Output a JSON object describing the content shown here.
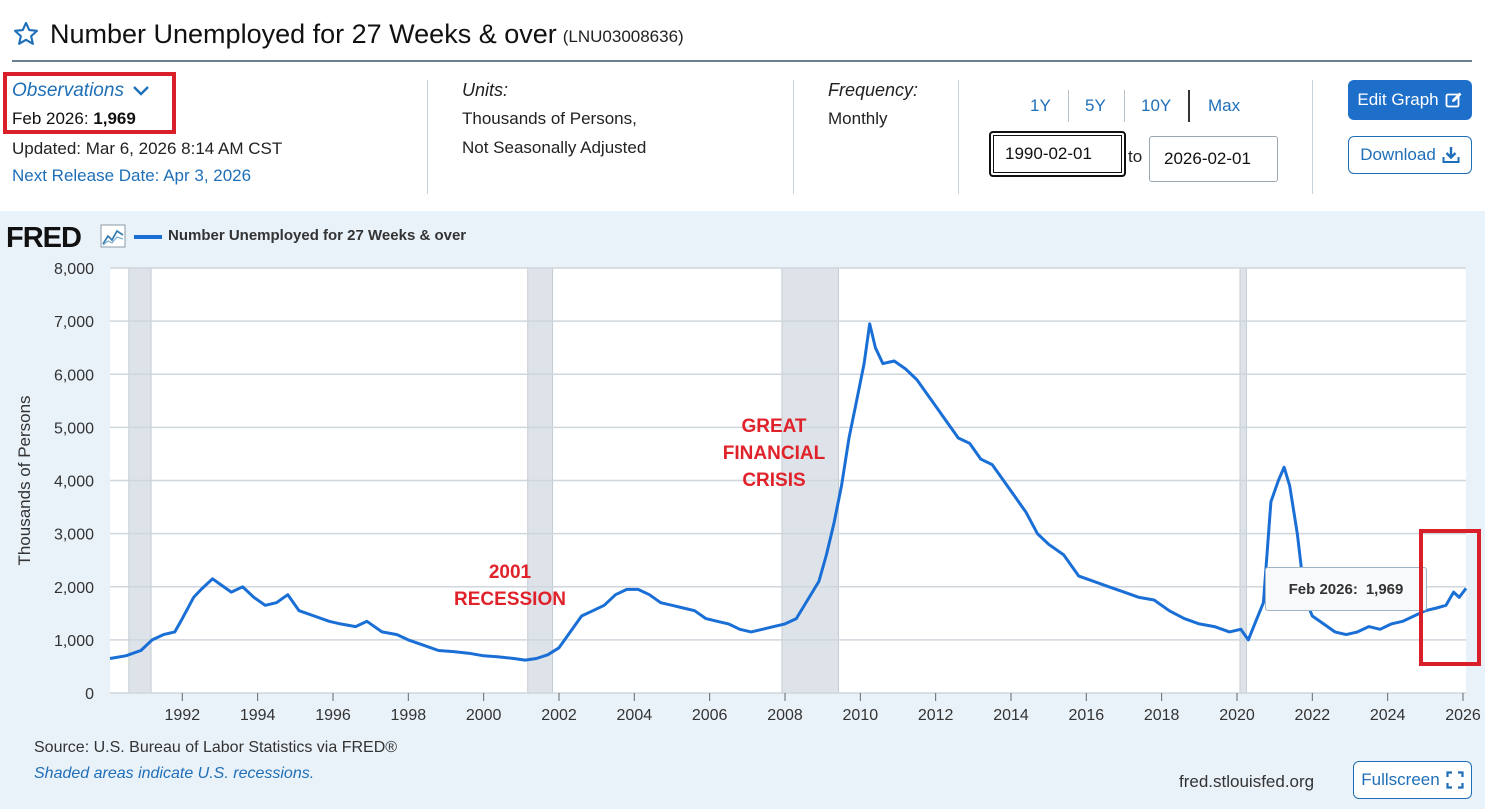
{
  "header": {
    "title": "Number Unemployed for 27 Weeks & over",
    "series_id": "(LNU03008636)"
  },
  "observations": {
    "label": "Observations",
    "value_date": "Feb 2026:",
    "value": "1,969",
    "updated": "Updated: Mar 6, 2026 8:14 AM CST",
    "next_release": "Next Release Date: Apr 3, 2026"
  },
  "units": {
    "label": "Units:",
    "line1": "Thousands of Persons,",
    "line2": "Not Seasonally Adjusted"
  },
  "frequency": {
    "label": "Frequency:",
    "value": "Monthly"
  },
  "range": {
    "buttons": [
      "1Y",
      "5Y",
      "10Y",
      "Max"
    ],
    "start": "1990-02-01",
    "to": "to",
    "end": "2026-02-01"
  },
  "actions": {
    "edit": "Edit Graph",
    "download": "Download",
    "fullscreen": "Fullscreen"
  },
  "chart_panel": {
    "logo": "FRED",
    "legend": "Number Unemployed for 27 Weeks & over",
    "source": "Source: U.S. Bureau of Labor Statistics via FRED®",
    "shaded_note": "Shaded areas indicate U.S. recessions.",
    "url": "fred.stlouisfed.org",
    "tooltip_date": "Feb 2026:",
    "tooltip_value": "1,969"
  },
  "annotations": {
    "recession2001_l1": "2001",
    "recession2001_l2": "RECESSION",
    "gfc_l1": "GREAT",
    "gfc_l2": "FINANCIAL",
    "gfc_l3": "CRISIS"
  },
  "colors": {
    "line": "#1a6fd6",
    "recession_shade": "#dde3e8",
    "annotation": "#e0232b",
    "highlight": "#d9202a",
    "link": "#1f6fb8"
  },
  "chart_data": {
    "type": "line",
    "title": "Number Unemployed for 27 Weeks & over",
    "ylabel": "Thousands of Persons",
    "xlabel": "",
    "ylim": [
      0,
      8000
    ],
    "xlim": [
      1990.08,
      2026.08
    ],
    "yticks": [
      0,
      1000,
      2000,
      3000,
      4000,
      5000,
      6000,
      7000,
      8000
    ],
    "ytick_labels": [
      "0",
      "1,000",
      "2,000",
      "3,000",
      "4,000",
      "5,000",
      "6,000",
      "7,000",
      "8,000"
    ],
    "xticks": [
      1992,
      1994,
      1996,
      1998,
      2000,
      2002,
      2004,
      2006,
      2008,
      2010,
      2012,
      2014,
      2016,
      2018,
      2020,
      2022,
      2024,
      2026
    ],
    "recessions": [
      [
        1990.58,
        1991.17
      ],
      [
        2001.17,
        2001.83
      ],
      [
        2007.92,
        2009.42
      ],
      [
        2020.08,
        2020.25
      ]
    ],
    "series": [
      {
        "name": "Number Unemployed for 27 Weeks & over",
        "x": [
          1990.08,
          1990.5,
          1990.9,
          1991.2,
          1991.5,
          1991.8,
          1992.0,
          1992.3,
          1992.5,
          1992.8,
          1993.0,
          1993.3,
          1993.6,
          1993.9,
          1994.2,
          1994.5,
          1994.8,
          1995.1,
          1995.5,
          1995.9,
          1996.2,
          1996.6,
          1996.9,
          1997.3,
          1997.7,
          1998.0,
          1998.4,
          1998.8,
          1999.2,
          1999.6,
          2000.0,
          2000.4,
          2000.8,
          2001.1,
          2001.4,
          2001.7,
          2002.0,
          2002.3,
          2002.6,
          2002.9,
          2003.2,
          2003.5,
          2003.8,
          2004.1,
          2004.4,
          2004.7,
          2005.0,
          2005.3,
          2005.6,
          2005.9,
          2006.2,
          2006.5,
          2006.8,
          2007.1,
          2007.4,
          2007.7,
          2008.0,
          2008.3,
          2008.6,
          2008.9,
          2009.1,
          2009.3,
          2009.5,
          2009.7,
          2009.9,
          2010.1,
          2010.25,
          2010.4,
          2010.6,
          2010.9,
          2011.2,
          2011.5,
          2011.8,
          2012.0,
          2012.3,
          2012.6,
          2012.9,
          2013.2,
          2013.5,
          2013.8,
          2014.1,
          2014.4,
          2014.7,
          2015.0,
          2015.4,
          2015.8,
          2016.2,
          2016.6,
          2017.0,
          2017.4,
          2017.8,
          2018.2,
          2018.6,
          2019.0,
          2019.4,
          2019.8,
          2020.1,
          2020.3,
          2020.5,
          2020.7,
          2020.9,
          2021.1,
          2021.25,
          2021.4,
          2021.6,
          2021.8,
          2022.0,
          2022.3,
          2022.6,
          2022.9,
          2023.2,
          2023.5,
          2023.8,
          2024.1,
          2024.4,
          2024.7,
          2025.0,
          2025.3,
          2025.55,
          2025.75,
          2025.9,
          2026.08
        ],
        "values": [
          650,
          700,
          800,
          1000,
          1100,
          1150,
          1400,
          1800,
          1950,
          2150,
          2050,
          1900,
          2000,
          1800,
          1650,
          1700,
          1850,
          1550,
          1450,
          1350,
          1300,
          1250,
          1350,
          1150,
          1100,
          1000,
          900,
          800,
          780,
          750,
          700,
          680,
          650,
          620,
          650,
          720,
          850,
          1150,
          1450,
          1550,
          1650,
          1850,
          1950,
          1950,
          1850,
          1700,
          1650,
          1600,
          1550,
          1400,
          1350,
          1300,
          1200,
          1150,
          1200,
          1250,
          1300,
          1400,
          1750,
          2100,
          2600,
          3200,
          3900,
          4800,
          5500,
          6200,
          6950,
          6500,
          6200,
          6250,
          6100,
          5900,
          5600,
          5400,
          5100,
          4800,
          4700,
          4400,
          4300,
          4000,
          3700,
          3400,
          3000,
          2800,
          2600,
          2200,
          2100,
          2000,
          1900,
          1800,
          1750,
          1550,
          1400,
          1300,
          1250,
          1150,
          1200,
          1000,
          1350,
          1700,
          3600,
          4000,
          4250,
          3900,
          3000,
          1800,
          1450,
          1300,
          1150,
          1100,
          1150,
          1250,
          1200,
          1300,
          1350,
          1450,
          1550,
          1600,
          1650,
          1900,
          1800,
          1969
        ]
      }
    ]
  }
}
